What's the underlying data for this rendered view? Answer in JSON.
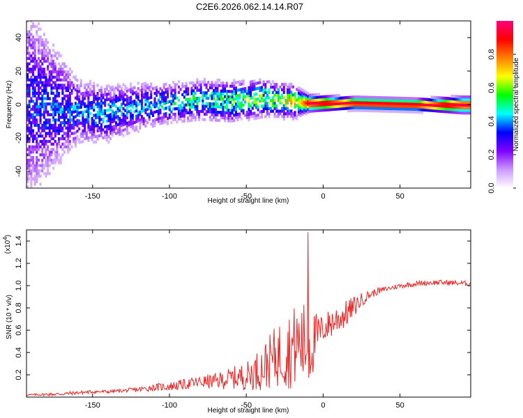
{
  "figure": {
    "title": "C2E6.2026.062.14.14.R07"
  },
  "chart_data": [
    {
      "type": "heatmap",
      "title": "C2E6.2026.062.14.14.R07",
      "xlabel": "Height of straight line (km)",
      "ylabel": "Frequency (Hz)",
      "xlim": [
        -193,
        96
      ],
      "ylim": [
        -50,
        50
      ],
      "xticks": [
        -150,
        -100,
        -50,
        0,
        50
      ],
      "xtick_labels": [
        "-150",
        "-100",
        "-50",
        "0",
        "50"
      ],
      "yticks": [
        -40,
        -20,
        0,
        20,
        40
      ],
      "ytick_labels": [
        "-40",
        "-20",
        "0",
        "20",
        "40"
      ],
      "band_trend": [
        {
          "x": -193,
          "f_center": 0,
          "width": 50,
          "amp": 0.25
        },
        {
          "x": -160,
          "f_center": -5,
          "width": 16,
          "amp": 0.3
        },
        {
          "x": -140,
          "f_center": -6,
          "width": 14,
          "amp": 0.32
        },
        {
          "x": -120,
          "f_center": -2,
          "width": 12,
          "amp": 0.3
        },
        {
          "x": -100,
          "f_center": 0,
          "width": 10,
          "amp": 0.35
        },
        {
          "x": -80,
          "f_center": 2,
          "width": 10,
          "amp": 0.38
        },
        {
          "x": -60,
          "f_center": 1,
          "width": 10,
          "amp": 0.42
        },
        {
          "x": -40,
          "f_center": 3,
          "width": 9,
          "amp": 0.45
        },
        {
          "x": -20,
          "f_center": 1,
          "width": 8,
          "amp": 0.5
        },
        {
          "x": -10,
          "f_center": 0,
          "width": 4,
          "amp": 0.95
        },
        {
          "x": 20,
          "f_center": 0,
          "width": 3,
          "amp": 0.95
        },
        {
          "x": 60,
          "f_center": -1,
          "width": 3,
          "amp": 0.95
        },
        {
          "x": 90,
          "f_center": -1,
          "width": 4,
          "amp": 0.95
        }
      ],
      "colorbar": {
        "label": "Normalized spectral amplitude",
        "range": [
          0,
          1
        ],
        "ticks": [
          0.0,
          0.2,
          0.4,
          0.6,
          0.8
        ],
        "tick_labels": [
          "0.0",
          "0.2",
          "0.4",
          "0.6",
          "0.8"
        ],
        "colormap": [
          "#ffffff",
          "#cc99ff",
          "#7f00ff",
          "#0000ff",
          "#00ffff",
          "#00ff00",
          "#ffff00",
          "#ff8000",
          "#ff0000",
          "#ff0080"
        ]
      }
    },
    {
      "type": "line",
      "title": "",
      "xlabel": "Height of straight line (km)",
      "ylabel": "SNR (10 * v/v)",
      "y_multiplier": "(x10",
      "y_multiplier_exp": "4",
      "y_multiplier_close": ")",
      "xlim": [
        -193,
        96
      ],
      "ylim": [
        0,
        1.5
      ],
      "xticks": [
        -150,
        -100,
        -50,
        0,
        50
      ],
      "xtick_labels": [
        "-150",
        "-100",
        "-50",
        "0",
        "50"
      ],
      "yticks": [
        0.2,
        0.4,
        0.6,
        0.8,
        1.0,
        1.2,
        1.4
      ],
      "ytick_labels": [
        "0.2",
        "0.4",
        "0.6",
        "0.8",
        "1.0",
        "1.2",
        "1.4"
      ],
      "color": "#ee2222",
      "series": [
        {
          "name": "SNR",
          "x": [
            -193,
            -170,
            -160,
            -150,
            -140,
            -130,
            -120,
            -110,
            -100,
            -90,
            -80,
            -70,
            -60,
            -50,
            -45,
            -40,
            -35,
            -30,
            -25,
            -20,
            -15,
            -10,
            -8,
            -5,
            -2,
            0,
            5,
            10,
            15,
            20,
            25,
            30,
            35,
            40,
            50,
            60,
            70,
            80,
            96
          ],
          "y": [
            0.02,
            0.03,
            0.04,
            0.05,
            0.05,
            0.06,
            0.07,
            0.09,
            0.1,
            0.12,
            0.14,
            0.15,
            0.18,
            0.2,
            0.24,
            0.28,
            0.34,
            0.4,
            0.44,
            0.48,
            0.52,
            0.5,
            0.48,
            0.55,
            0.6,
            0.62,
            0.68,
            0.72,
            0.76,
            0.82,
            0.88,
            0.92,
            0.95,
            0.97,
            1.0,
            1.02,
            1.03,
            1.03,
            1.02
          ],
          "noise_amplitude": [
            0.01,
            0.02,
            0.02,
            0.02,
            0.02,
            0.02,
            0.03,
            0.04,
            0.05,
            0.06,
            0.07,
            0.09,
            0.12,
            0.16,
            0.2,
            0.25,
            0.3,
            0.36,
            0.42,
            0.46,
            0.48,
            0.5,
            0.4,
            0.3,
            0.2,
            0.15,
            0.18,
            0.17,
            0.15,
            0.12,
            0.08,
            0.05,
            0.04,
            0.03,
            0.03,
            0.03,
            0.03,
            0.03,
            0.03
          ],
          "spike": {
            "x": -10,
            "y": 1.48
          }
        }
      ]
    }
  ]
}
